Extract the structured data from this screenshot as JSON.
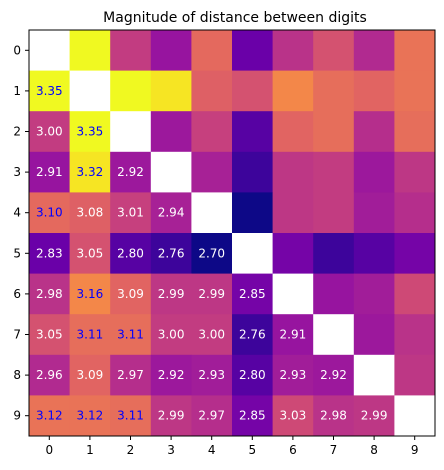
{
  "chart_data": {
    "type": "heatmap",
    "title": "Magnitude of distance between digits",
    "xlabel": "",
    "ylabel": "",
    "x_categories": [
      "0",
      "1",
      "2",
      "3",
      "4",
      "5",
      "6",
      "7",
      "8",
      "9"
    ],
    "y_categories": [
      "0",
      "1",
      "2",
      "3",
      "4",
      "5",
      "6",
      "7",
      "8",
      "9"
    ],
    "colormap": "plasma",
    "value_range": [
      2.7,
      3.35
    ],
    "diagonal": "blank",
    "annotation_region": "lower-triangle",
    "label_colors": {
      "light": "#ffffff",
      "dark": "#0000ff"
    },
    "values": [
      [
        null,
        3.35,
        3.0,
        2.91,
        3.1,
        2.83,
        2.98,
        3.05,
        2.96,
        3.12
      ],
      [
        3.35,
        null,
        3.35,
        3.32,
        3.08,
        3.05,
        3.16,
        3.11,
        3.09,
        3.12
      ],
      [
        3.0,
        3.35,
        null,
        2.92,
        3.01,
        2.8,
        3.09,
        3.11,
        2.97,
        3.11
      ],
      [
        2.91,
        3.32,
        2.92,
        null,
        2.94,
        2.76,
        2.99,
        3.0,
        2.92,
        2.99
      ],
      [
        3.1,
        3.08,
        3.01,
        2.94,
        null,
        2.7,
        2.99,
        3.0,
        2.93,
        2.97
      ],
      [
        2.83,
        3.05,
        2.8,
        2.76,
        2.7,
        null,
        2.85,
        2.76,
        2.8,
        2.85
      ],
      [
        2.98,
        3.16,
        3.09,
        2.99,
        2.99,
        2.85,
        null,
        2.91,
        2.93,
        3.03
      ],
      [
        3.05,
        3.11,
        3.11,
        3.0,
        3.0,
        2.76,
        2.91,
        null,
        2.92,
        2.98
      ],
      [
        2.96,
        3.09,
        2.97,
        2.92,
        2.93,
        2.8,
        2.93,
        2.92,
        null,
        2.99
      ],
      [
        3.12,
        3.12,
        3.11,
        2.99,
        2.97,
        2.85,
        3.03,
        2.98,
        2.99,
        null
      ]
    ],
    "labels": [
      [
        null,
        null,
        null,
        null,
        null,
        null,
        null,
        null,
        null,
        null
      ],
      [
        "3.35",
        null,
        null,
        null,
        null,
        null,
        null,
        null,
        null,
        null
      ],
      [
        "3.00",
        "3.35",
        null,
        null,
        null,
        null,
        null,
        null,
        null,
        null
      ],
      [
        "2.91",
        "3.32",
        "2.92",
        null,
        null,
        null,
        null,
        null,
        null,
        null
      ],
      [
        "3.10",
        "3.08",
        "3.01",
        "2.94",
        null,
        null,
        null,
        null,
        null,
        null
      ],
      [
        "2.83",
        "3.05",
        "2.80",
        "2.76",
        "2.70",
        null,
        null,
        null,
        null,
        null
      ],
      [
        "2.98",
        "3.16",
        "3.09",
        "2.99",
        "2.99",
        "2.85",
        null,
        null,
        null,
        null
      ],
      [
        "3.05",
        "3.11",
        "3.11",
        "3.00",
        "3.00",
        "2.76",
        "2.91",
        null,
        null,
        null
      ],
      [
        "2.96",
        "3.09",
        "2.97",
        "2.92",
        "2.93",
        "2.80",
        "2.93",
        "2.92",
        null,
        null
      ],
      [
        "3.12",
        "3.12",
        "3.11",
        "2.99",
        "2.97",
        "2.85",
        "3.03",
        "2.98",
        "2.99",
        null
      ]
    ],
    "label_dark": [
      [
        false,
        false,
        false,
        false,
        false,
        false,
        false,
        false,
        false,
        false
      ],
      [
        true,
        false,
        false,
        false,
        false,
        false,
        false,
        false,
        false,
        false
      ],
      [
        false,
        true,
        false,
        false,
        false,
        false,
        false,
        false,
        false,
        false
      ],
      [
        false,
        true,
        false,
        false,
        false,
        false,
        false,
        false,
        false,
        false
      ],
      [
        true,
        false,
        false,
        false,
        false,
        false,
        false,
        false,
        false,
        false
      ],
      [
        false,
        false,
        false,
        false,
        false,
        false,
        false,
        false,
        false,
        false
      ],
      [
        false,
        true,
        false,
        false,
        false,
        false,
        false,
        false,
        false,
        false
      ],
      [
        false,
        true,
        true,
        false,
        false,
        false,
        false,
        false,
        false,
        false
      ],
      [
        false,
        false,
        false,
        false,
        false,
        false,
        false,
        false,
        false,
        false
      ],
      [
        true,
        true,
        true,
        false,
        false,
        false,
        false,
        false,
        false,
        false
      ]
    ]
  }
}
